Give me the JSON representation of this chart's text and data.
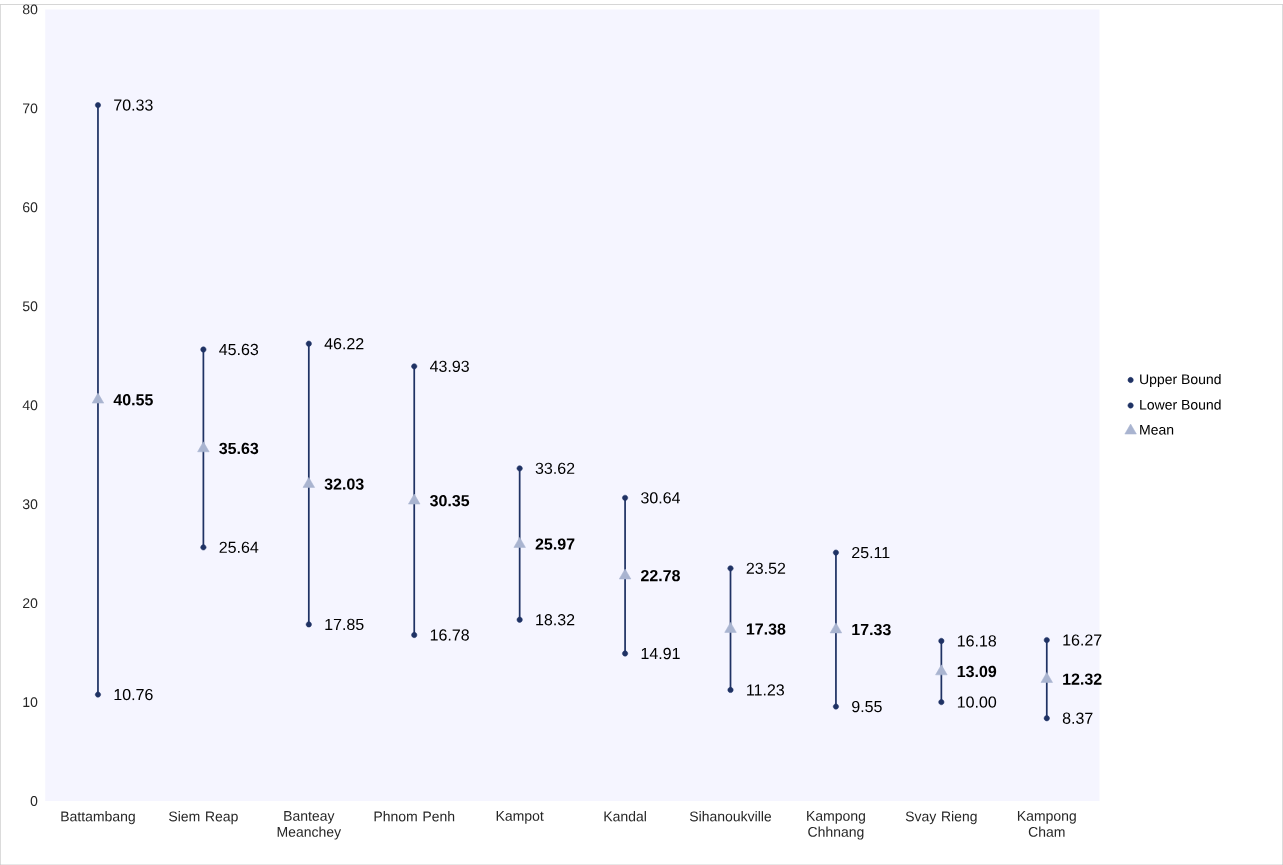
{
  "chart_data": {
    "type": "scatter",
    "categories": [
      "Battambang",
      "Siem Reap",
      "Banteay Meanchey",
      "Phnom Penh",
      "Kampot",
      "Kandal",
      "Sihanoukville",
      "Kampong Chhnang",
      "Svay Rieng",
      "Kampong Cham"
    ],
    "ylim": [
      0,
      80
    ],
    "yticks": [
      0,
      10,
      20,
      30,
      40,
      50,
      60,
      70,
      80
    ],
    "grid": false,
    "legend": "right",
    "series": [
      {
        "name": "Upper Bound",
        "color": "#1f3264",
        "marker": "none",
        "values": [
          70.33,
          45.63,
          46.22,
          43.93,
          33.62,
          30.64,
          23.52,
          25.11,
          16.18,
          16.27
        ],
        "value_labels": [
          "70.33",
          "45.63",
          "46.22",
          "43.93",
          "33.62",
          "30.64",
          "23.52",
          "25.11",
          "16.18",
          "16.27"
        ]
      },
      {
        "name": "Lower Bound",
        "color": "#1f3264",
        "marker": "none",
        "values": [
          10.76,
          25.64,
          17.85,
          16.78,
          18.32,
          14.91,
          11.23,
          9.55,
          10.0,
          8.37
        ],
        "value_labels": [
          "10.76",
          "25.64",
          "17.85",
          "16.78",
          "18.32",
          "14.91",
          "11.23",
          "9.55",
          "10.00",
          "8.37"
        ]
      },
      {
        "name": "Mean",
        "color": "#a9b4d0",
        "marker": "triangle",
        "values": [
          40.55,
          35.63,
          32.03,
          30.35,
          25.97,
          22.78,
          17.38,
          17.33,
          13.09,
          12.32
        ],
        "value_labels": [
          "40.55",
          "35.63",
          "32.03",
          "30.35",
          "25.97",
          "22.78",
          "17.38",
          "17.33",
          "13.09",
          "12.32"
        ]
      }
    ]
  }
}
